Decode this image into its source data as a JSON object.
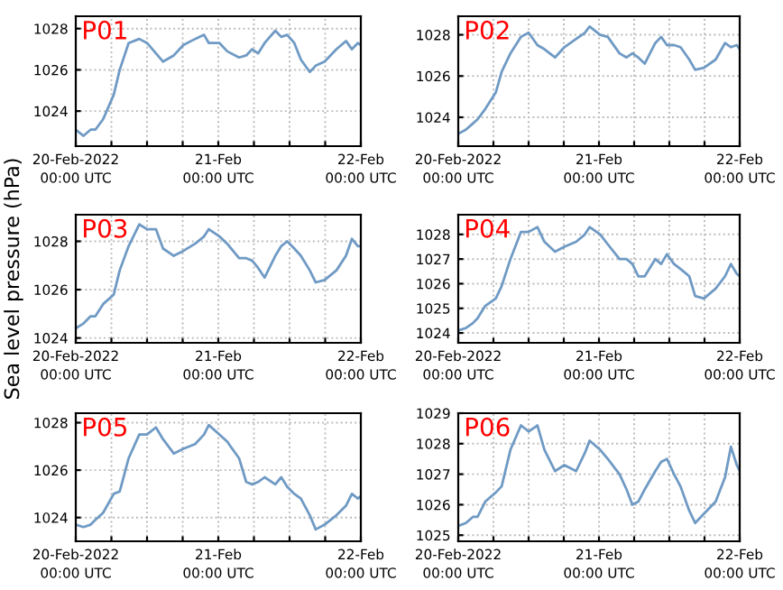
{
  "chart_data": [
    {
      "type": "line",
      "title": "P01",
      "x": [
        "2022-02-20T00:00",
        "2022-02-20T01:18",
        "2022-02-20T02:30",
        "2022-02-20T03:18",
        "2022-02-20T04:36",
        "2022-02-20T06:24",
        "2022-02-20T07:24",
        "2022-02-20T08:54",
        "2022-02-20T10:42",
        "2022-02-20T12:00",
        "2022-02-20T13:30",
        "2022-02-20T14:42",
        "2022-02-20T16:30",
        "2022-02-20T18:06",
        "2022-02-20T20:06",
        "2022-02-20T21:36",
        "2022-02-20T22:24",
        "2022-02-21T00:12",
        "2022-02-21T01:30",
        "2022-02-21T03:30",
        "2022-02-21T04:42",
        "2022-02-21T05:42",
        "2022-02-21T06:42",
        "2022-02-21T07:48",
        "2022-02-21T09:36",
        "2022-02-21T10:36",
        "2022-02-21T11:36",
        "2022-02-21T12:48",
        "2022-02-21T13:54",
        "2022-02-21T15:24",
        "2022-02-21T16:24",
        "2022-02-21T17:54",
        "2022-02-21T19:54",
        "2022-02-21T21:30",
        "2022-02-21T22:30",
        "2022-02-21T23:30",
        "2022-02-22T00:00"
      ],
      "series": [
        {
          "color": "#6f9ac4",
          "values": [
            1023.1,
            1022.8,
            1023.1,
            1023.1,
            1023.6,
            1024.8,
            1026,
            1027.3,
            1027.5,
            1027.3,
            1026.8,
            1026.4,
            1026.7,
            1027.2,
            1027.5,
            1027.7,
            1027.3,
            1027.3,
            1026.9,
            1026.6,
            1026.7,
            1027,
            1026.8,
            1027.3,
            1027.9,
            1027.6,
            1027.7,
            1027.3,
            1026.5,
            1025.9,
            1026.2,
            1026.4,
            1027,
            1027.4,
            1027,
            1027.3,
            1027.2
          ]
        }
      ],
      "xlim": [
        "2022-02-20T00:00",
        "2022-02-22T00:00"
      ],
      "xticks": [
        {
          "value": "2022-02-20T00:00",
          "label": "20-Feb-2022\n00:00 UTC"
        },
        {
          "value": "2022-02-20T06:00",
          "label": null
        },
        {
          "value": "2022-02-20T12:00",
          "label": null
        },
        {
          "value": "2022-02-20T18:00",
          "label": null
        },
        {
          "value": "2022-02-21T00:00",
          "label": "21-Feb\n00:00 UTC"
        },
        {
          "value": "2022-02-21T06:00",
          "label": null
        },
        {
          "value": "2022-02-21T12:00",
          "label": null
        },
        {
          "value": "2022-02-21T18:00",
          "label": null
        },
        {
          "value": "2022-02-22T00:00",
          "label": "22-Feb\n00:00 UTC"
        }
      ],
      "ylim": [
        1022.3,
        1028.6
      ],
      "yticks": [
        1024,
        1026,
        1028
      ],
      "grid": true
    },
    {
      "type": "line",
      "title": "P02",
      "x": [
        "2022-02-20T00:00",
        "2022-02-20T01:18",
        "2022-02-20T02:30",
        "2022-02-20T03:18",
        "2022-02-20T04:36",
        "2022-02-20T06:24",
        "2022-02-20T07:24",
        "2022-02-20T08:54",
        "2022-02-20T10:42",
        "2022-02-20T12:00",
        "2022-02-20T13:30",
        "2022-02-20T14:42",
        "2022-02-20T16:30",
        "2022-02-20T18:06",
        "2022-02-20T20:06",
        "2022-02-20T21:36",
        "2022-02-20T22:24",
        "2022-02-21T00:12",
        "2022-02-21T01:30",
        "2022-02-21T03:30",
        "2022-02-21T04:42",
        "2022-02-21T05:42",
        "2022-02-21T06:42",
        "2022-02-21T07:48",
        "2022-02-21T09:36",
        "2022-02-21T10:36",
        "2022-02-21T11:36",
        "2022-02-21T12:48",
        "2022-02-21T13:54",
        "2022-02-21T15:24",
        "2022-02-21T16:24",
        "2022-02-21T17:54",
        "2022-02-21T19:54",
        "2022-02-21T21:30",
        "2022-02-21T22:30",
        "2022-02-21T23:30",
        "2022-02-22T00:00"
      ],
      "series": [
        {
          "color": "#6f9ac4",
          "values": [
            1023.2,
            1023.4,
            1023.7,
            1023.9,
            1024.4,
            1025.2,
            1026.2,
            1027.1,
            1027.9,
            1028.1,
            1027.5,
            1027.3,
            1026.9,
            1027.4,
            1027.8,
            1028.1,
            1028.4,
            1028,
            1027.9,
            1027.1,
            1026.9,
            1027.1,
            1026.9,
            1026.6,
            1027.6,
            1027.9,
            1027.5,
            1027.5,
            1027.4,
            1026.8,
            1026.3,
            1026.4,
            1026.8,
            1027.6,
            1027.4,
            1027.5,
            1027.3
          ]
        }
      ],
      "xlim": [
        "2022-02-20T00:00",
        "2022-02-22T00:00"
      ],
      "xticks": [
        {
          "value": "2022-02-20T00:00",
          "label": "20-Feb-2022\n00:00 UTC"
        },
        {
          "value": "2022-02-20T06:00",
          "label": null
        },
        {
          "value": "2022-02-20T12:00",
          "label": null
        },
        {
          "value": "2022-02-20T18:00",
          "label": null
        },
        {
          "value": "2022-02-21T00:00",
          "label": "21-Feb\n00:00 UTC"
        },
        {
          "value": "2022-02-21T06:00",
          "label": null
        },
        {
          "value": "2022-02-21T12:00",
          "label": null
        },
        {
          "value": "2022-02-21T18:00",
          "label": null
        },
        {
          "value": "2022-02-22T00:00",
          "label": "22-Feb\n00:00 UTC"
        }
      ],
      "ylim": [
        1022.6,
        1028.9
      ],
      "yticks": [
        1024,
        1026,
        1028
      ],
      "grid": true
    },
    {
      "type": "line",
      "title": "P03",
      "ylabel": "Sea level pressure (hPa)",
      "x": [
        "2022-02-20T00:00",
        "2022-02-20T01:18",
        "2022-02-20T02:30",
        "2022-02-20T03:18",
        "2022-02-20T04:36",
        "2022-02-20T06:24",
        "2022-02-20T07:24",
        "2022-02-20T08:54",
        "2022-02-20T10:42",
        "2022-02-20T12:00",
        "2022-02-20T13:30",
        "2022-02-20T14:42",
        "2022-02-20T16:30",
        "2022-02-20T18:06",
        "2022-02-20T20:06",
        "2022-02-20T21:36",
        "2022-02-20T22:24",
        "2022-02-21T00:12",
        "2022-02-21T01:30",
        "2022-02-21T03:30",
        "2022-02-21T04:42",
        "2022-02-21T05:42",
        "2022-02-21T06:42",
        "2022-02-21T07:48",
        "2022-02-21T09:36",
        "2022-02-21T10:36",
        "2022-02-21T11:36",
        "2022-02-21T12:48",
        "2022-02-21T13:54",
        "2022-02-21T15:24",
        "2022-02-21T16:24",
        "2022-02-21T17:54",
        "2022-02-21T19:54",
        "2022-02-21T21:30",
        "2022-02-21T22:30",
        "2022-02-21T23:30",
        "2022-02-22T00:00"
      ],
      "series": [
        {
          "color": "#6f9ac4",
          "values": [
            1024.4,
            1024.6,
            1024.9,
            1024.9,
            1025.4,
            1025.8,
            1026.8,
            1027.8,
            1028.7,
            1028.5,
            1028.5,
            1027.7,
            1027.4,
            1027.6,
            1027.9,
            1028.2,
            1028.5,
            1028.2,
            1027.9,
            1027.3,
            1027.3,
            1027.2,
            1026.9,
            1026.5,
            1027.4,
            1027.8,
            1028,
            1027.7,
            1027.4,
            1026.8,
            1026.3,
            1026.4,
            1026.8,
            1027.4,
            1028.1,
            1027.8,
            1027.8
          ]
        }
      ],
      "xlim": [
        "2022-02-20T00:00",
        "2022-02-22T00:00"
      ],
      "xticks": [
        {
          "value": "2022-02-20T00:00",
          "label": "20-Feb-2022\n00:00 UTC"
        },
        {
          "value": "2022-02-20T06:00",
          "label": null
        },
        {
          "value": "2022-02-20T12:00",
          "label": null
        },
        {
          "value": "2022-02-20T18:00",
          "label": null
        },
        {
          "value": "2022-02-21T00:00",
          "label": "21-Feb\n00:00 UTC"
        },
        {
          "value": "2022-02-21T06:00",
          "label": null
        },
        {
          "value": "2022-02-21T12:00",
          "label": null
        },
        {
          "value": "2022-02-21T18:00",
          "label": null
        },
        {
          "value": "2022-02-22T00:00",
          "label": "22-Feb\n00:00 UTC"
        }
      ],
      "ylim": [
        1023.8,
        1029.1
      ],
      "yticks": [
        1024,
        1026,
        1028
      ],
      "grid": true
    },
    {
      "type": "line",
      "title": "P04",
      "x": [
        "2022-02-20T00:00",
        "2022-02-20T01:18",
        "2022-02-20T02:30",
        "2022-02-20T03:18",
        "2022-02-20T04:36",
        "2022-02-20T06:24",
        "2022-02-20T07:24",
        "2022-02-20T08:54",
        "2022-02-20T10:42",
        "2022-02-20T12:00",
        "2022-02-20T13:30",
        "2022-02-20T14:42",
        "2022-02-20T16:30",
        "2022-02-20T18:06",
        "2022-02-20T20:06",
        "2022-02-20T21:36",
        "2022-02-20T22:24",
        "2022-02-21T00:12",
        "2022-02-21T01:30",
        "2022-02-21T03:30",
        "2022-02-21T04:42",
        "2022-02-21T05:42",
        "2022-02-21T06:42",
        "2022-02-21T07:48",
        "2022-02-21T09:36",
        "2022-02-21T10:36",
        "2022-02-21T11:36",
        "2022-02-21T12:48",
        "2022-02-21T13:54",
        "2022-02-21T15:24",
        "2022-02-21T16:24",
        "2022-02-21T17:54",
        "2022-02-21T19:54",
        "2022-02-21T21:30",
        "2022-02-21T22:30",
        "2022-02-21T23:30",
        "2022-02-22T00:00"
      ],
      "series": [
        {
          "color": "#6f9ac4",
          "values": [
            1024.1,
            1024.2,
            1024.4,
            1024.6,
            1025.1,
            1025.4,
            1025.9,
            1027,
            1028.1,
            1028.1,
            1028.3,
            1027.7,
            1027.3,
            1027.5,
            1027.7,
            1028,
            1028.3,
            1028,
            1027.6,
            1027,
            1027,
            1026.8,
            1026.3,
            1026.3,
            1027,
            1026.8,
            1027.2,
            1026.8,
            1026.6,
            1026.3,
            1025.5,
            1025.4,
            1025.8,
            1026.3,
            1026.8,
            1026.4,
            1026.3
          ]
        }
      ],
      "xlim": [
        "2022-02-20T00:00",
        "2022-02-22T00:00"
      ],
      "xticks": [
        {
          "value": "2022-02-20T00:00",
          "label": "20-Feb-2022\n00:00 UTC"
        },
        {
          "value": "2022-02-20T06:00",
          "label": null
        },
        {
          "value": "2022-02-20T12:00",
          "label": null
        },
        {
          "value": "2022-02-20T18:00",
          "label": null
        },
        {
          "value": "2022-02-21T00:00",
          "label": "21-Feb\n00:00 UTC"
        },
        {
          "value": "2022-02-21T06:00",
          "label": null
        },
        {
          "value": "2022-02-21T12:00",
          "label": null
        },
        {
          "value": "2022-02-21T18:00",
          "label": null
        },
        {
          "value": "2022-02-22T00:00",
          "label": "22-Feb\n00:00 UTC"
        }
      ],
      "ylim": [
        1023.6,
        1028.8
      ],
      "yticks": [
        1024,
        1025,
        1026,
        1027,
        1028
      ],
      "grid": true
    },
    {
      "type": "line",
      "title": "P05",
      "x": [
        "2022-02-20T00:00",
        "2022-02-20T01:18",
        "2022-02-20T02:30",
        "2022-02-20T03:18",
        "2022-02-20T04:36",
        "2022-02-20T06:24",
        "2022-02-20T07:24",
        "2022-02-20T08:54",
        "2022-02-20T10:42",
        "2022-02-20T12:00",
        "2022-02-20T13:30",
        "2022-02-20T14:42",
        "2022-02-20T16:30",
        "2022-02-20T18:06",
        "2022-02-20T20:06",
        "2022-02-20T21:36",
        "2022-02-20T22:24",
        "2022-02-21T00:12",
        "2022-02-21T01:30",
        "2022-02-21T03:30",
        "2022-02-21T04:42",
        "2022-02-21T05:42",
        "2022-02-21T06:42",
        "2022-02-21T07:48",
        "2022-02-21T09:36",
        "2022-02-21T10:36",
        "2022-02-21T11:36",
        "2022-02-21T12:48",
        "2022-02-21T13:54",
        "2022-02-21T15:24",
        "2022-02-21T16:24",
        "2022-02-21T17:54",
        "2022-02-21T19:54",
        "2022-02-21T21:30",
        "2022-02-21T22:30",
        "2022-02-21T23:30",
        "2022-02-22T00:00"
      ],
      "series": [
        {
          "color": "#6f9ac4",
          "values": [
            1023.7,
            1023.6,
            1023.7,
            1023.9,
            1024.2,
            1025,
            1025.1,
            1026.5,
            1027.5,
            1027.5,
            1027.8,
            1027.3,
            1026.7,
            1026.9,
            1027.1,
            1027.5,
            1027.9,
            1027.5,
            1027.2,
            1026.5,
            1025.5,
            1025.4,
            1025.5,
            1025.7,
            1025.4,
            1025.7,
            1025.3,
            1025,
            1024.8,
            1024.1,
            1023.5,
            1023.7,
            1024.1,
            1024.5,
            1025,
            1024.8,
            1024.9
          ]
        }
      ],
      "xlim": [
        "2022-02-20T00:00",
        "2022-02-22T00:00"
      ],
      "xticks": [
        {
          "value": "2022-02-20T00:00",
          "label": "20-Feb-2022\n00:00 UTC"
        },
        {
          "value": "2022-02-20T06:00",
          "label": null
        },
        {
          "value": "2022-02-20T12:00",
          "label": null
        },
        {
          "value": "2022-02-20T18:00",
          "label": null
        },
        {
          "value": "2022-02-21T00:00",
          "label": "21-Feb\n00:00 UTC"
        },
        {
          "value": "2022-02-21T06:00",
          "label": null
        },
        {
          "value": "2022-02-21T12:00",
          "label": null
        },
        {
          "value": "2022-02-21T18:00",
          "label": null
        },
        {
          "value": "2022-02-22T00:00",
          "label": "22-Feb\n00:00 UTC"
        }
      ],
      "ylim": [
        1023.0,
        1028.4
      ],
      "yticks": [
        1024,
        1026,
        1028
      ],
      "grid": true
    },
    {
      "type": "line",
      "title": "P06",
      "x": [
        "2022-02-20T00:00",
        "2022-02-20T01:18",
        "2022-02-20T02:30",
        "2022-02-20T03:18",
        "2022-02-20T04:36",
        "2022-02-20T06:24",
        "2022-02-20T07:24",
        "2022-02-20T08:54",
        "2022-02-20T10:42",
        "2022-02-20T12:00",
        "2022-02-20T13:30",
        "2022-02-20T14:42",
        "2022-02-20T16:30",
        "2022-02-20T18:06",
        "2022-02-20T20:06",
        "2022-02-20T21:36",
        "2022-02-20T22:24",
        "2022-02-21T00:12",
        "2022-02-21T01:30",
        "2022-02-21T03:30",
        "2022-02-21T04:42",
        "2022-02-21T05:42",
        "2022-02-21T06:42",
        "2022-02-21T07:48",
        "2022-02-21T09:36",
        "2022-02-21T10:36",
        "2022-02-21T11:36",
        "2022-02-21T12:48",
        "2022-02-21T13:54",
        "2022-02-21T15:24",
        "2022-02-21T16:24",
        "2022-02-21T17:54",
        "2022-02-21T19:54",
        "2022-02-21T21:30",
        "2022-02-21T22:30",
        "2022-02-21T23:30",
        "2022-02-22T00:00"
      ],
      "series": [
        {
          "color": "#6f9ac4",
          "values": [
            1025.3,
            1025.4,
            1025.6,
            1025.6,
            1026.1,
            1026.4,
            1026.6,
            1027.8,
            1028.6,
            1028.4,
            1028.6,
            1027.8,
            1027.1,
            1027.3,
            1027.1,
            1027.7,
            1028.1,
            1027.8,
            1027.5,
            1027,
            1026.5,
            1026,
            1026.1,
            1026.5,
            1027.1,
            1027.4,
            1027.5,
            1027,
            1026.6,
            1025.8,
            1025.4,
            1025.7,
            1026.1,
            1026.9,
            1027.9,
            1027.3,
            1027.1
          ]
        }
      ],
      "xlim": [
        "2022-02-20T00:00",
        "2022-02-22T00:00"
      ],
      "xticks": [
        {
          "value": "2022-02-20T00:00",
          "label": "20-Feb-2022\n00:00 UTC"
        },
        {
          "value": "2022-02-20T06:00",
          "label": null
        },
        {
          "value": "2022-02-20T12:00",
          "label": null
        },
        {
          "value": "2022-02-20T18:00",
          "label": null
        },
        {
          "value": "2022-02-21T00:00",
          "label": "21-Feb\n00:00 UTC"
        },
        {
          "value": "2022-02-21T06:00",
          "label": null
        },
        {
          "value": "2022-02-21T12:00",
          "label": null
        },
        {
          "value": "2022-02-21T18:00",
          "label": null
        },
        {
          "value": "2022-02-22T00:00",
          "label": "22-Feb\n00:00 UTC"
        }
      ],
      "ylim": [
        1024.8,
        1029.0
      ],
      "yticks": [
        1025,
        1026,
        1027,
        1028,
        1029
      ],
      "grid": true
    }
  ]
}
